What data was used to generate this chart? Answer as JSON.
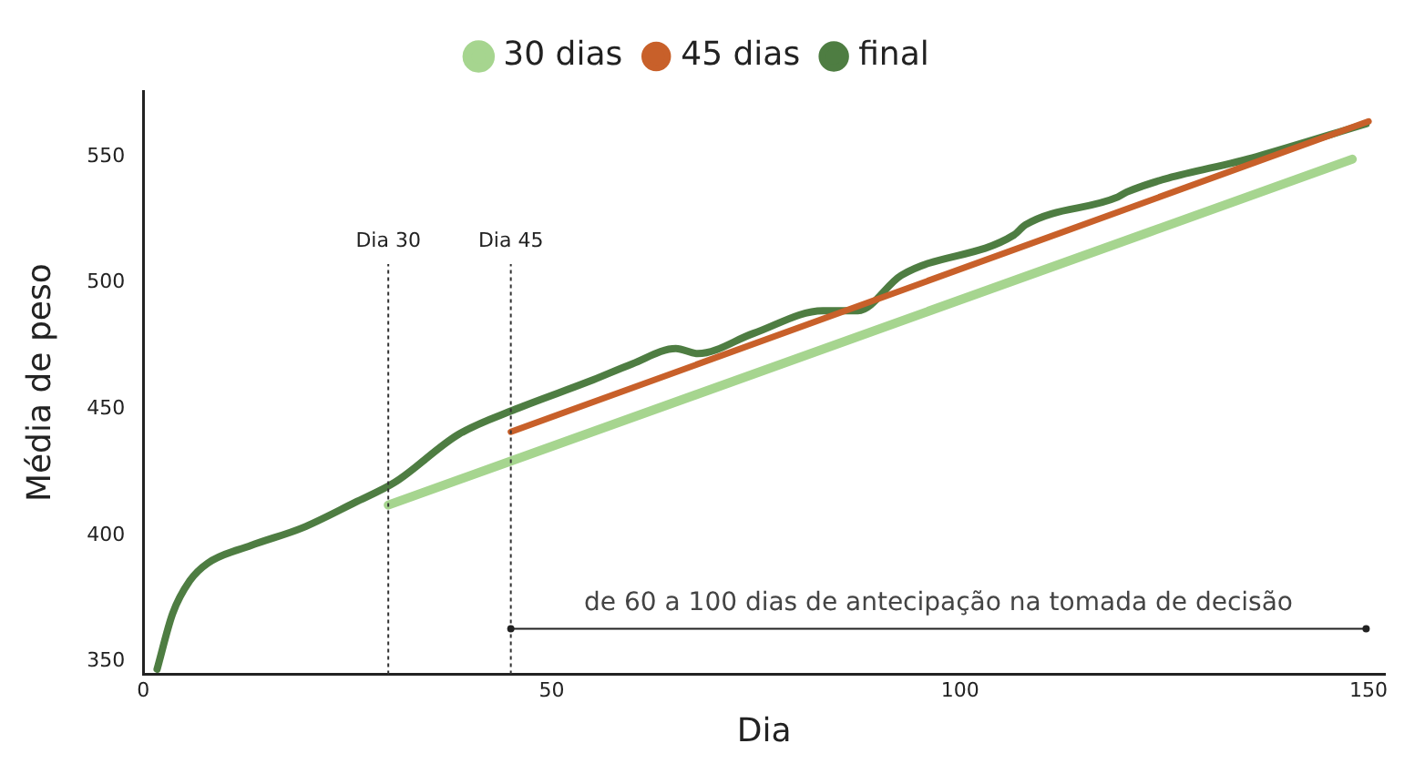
{
  "chart_data": {
    "type": "line",
    "xlabel": "Dia",
    "ylabel": "Média de peso",
    "xlim": [
      0,
      152
    ],
    "xticks": [
      0,
      50,
      100,
      150
    ],
    "ylim": [
      345,
      576
    ],
    "yticks": [
      350,
      400,
      450,
      500,
      550
    ],
    "grid": false,
    "legend": "top",
    "marker": "none",
    "line_style": "solid",
    "series": [
      {
        "name": "30 dias",
        "color": "#a6d58f",
        "x": [
          30,
          148
        ],
        "values": [
          412,
          549
        ]
      },
      {
        "name": "45 dias",
        "color": "#c8602a",
        "x": [
          45,
          150
        ],
        "values": [
          441,
          564
        ]
      },
      {
        "name": "final",
        "color": "#4e7d42",
        "x": [
          1.7,
          3.6,
          5.7,
          7.9,
          13.2,
          19.5,
          25.9,
          30.8,
          38.6,
          45.6,
          54.6,
          59.9,
          65.2,
          67.9,
          74.7,
          83.2,
          87.5,
          92.8,
          106.6,
          108,
          119.3,
          120.4,
          136.3,
          149.7
        ],
        "values": [
          347,
          369,
          382,
          389,
          396,
          403,
          413,
          421,
          440,
          450,
          461,
          468,
          474,
          472,
          480,
          489,
          489,
          503,
          519,
          523,
          534,
          536,
          550,
          563
        ]
      }
    ],
    "ref_lines": [
      {
        "axis": "x",
        "value": 30,
        "label": "Dia 30",
        "line_style": "dotted",
        "color": "#333333"
      },
      {
        "axis": "x",
        "value": 45,
        "label": "Dia 45",
        "line_style": "dotted",
        "color": "#333333"
      }
    ],
    "annotations": [
      "de 60 a 100 dias de antecipação na tomada de decisão"
    ]
  }
}
